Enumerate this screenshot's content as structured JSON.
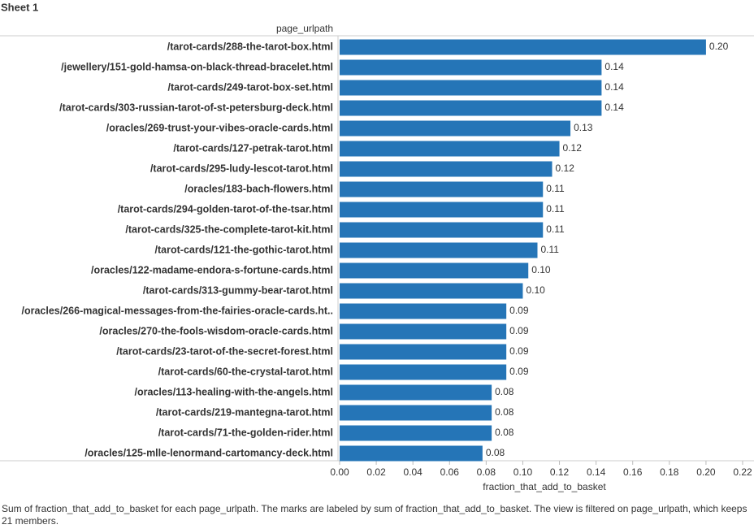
{
  "sheet_title": "Sheet 1",
  "chart_data": {
    "type": "hbar",
    "category_axis_label": "page_urlpath",
    "x_label": "fraction_that_add_to_basket",
    "caption": "Sum of fraction_that_add_to_basket for each page_urlpath.  The marks are labeled by sum of fraction_that_add_to_basket. The view is filtered on page_urlpath, which keeps 21 members.",
    "color": "#2575b7",
    "categories": [
      "/tarot-cards/288-the-tarot-box.html",
      "/jewellery/151-gold-hamsa-on-black-thread-bracelet.html",
      "/tarot-cards/249-tarot-box-set.html",
      "/tarot-cards/303-russian-tarot-of-st-petersburg-deck.html",
      "/oracles/269-trust-your-vibes-oracle-cards.html",
      "/tarot-cards/127-petrak-tarot.html",
      "/tarot-cards/295-ludy-lescot-tarot.html",
      "/oracles/183-bach-flowers.html",
      "/tarot-cards/294-golden-tarot-of-the-tsar.html",
      "/tarot-cards/325-the-complete-tarot-kit.html",
      "/tarot-cards/121-the-gothic-tarot.html",
      "/oracles/122-madame-endora-s-fortune-cards.html",
      "/tarot-cards/313-gummy-bear-tarot.html",
      "/oracles/266-magical-messages-from-the-fairies-oracle-cards.ht..",
      "/oracles/270-the-fools-wisdom-oracle-cards.html",
      "/tarot-cards/23-tarot-of-the-secret-forest.html",
      "/tarot-cards/60-the-crystal-tarot.html",
      "/oracles/113-healing-with-the-angels.html",
      "/tarot-cards/219-mantegna-tarot.html",
      "/tarot-cards/71-the-golden-rider.html",
      "/oracles/125-mlle-lenormand-cartomancy-deck.html"
    ],
    "values": [
      0.2,
      0.143,
      0.143,
      0.143,
      0.126,
      0.12,
      0.116,
      0.111,
      0.111,
      0.111,
      0.108,
      0.103,
      0.1,
      0.091,
      0.091,
      0.091,
      0.091,
      0.083,
      0.083,
      0.083,
      0.078
    ],
    "value_labels": [
      "0.20",
      "0.14",
      "0.14",
      "0.14",
      "0.13",
      "0.12",
      "0.12",
      "0.11",
      "0.11",
      "0.11",
      "0.11",
      "0.10",
      "0.10",
      "0.09",
      "0.09",
      "0.09",
      "0.09",
      "0.08",
      "0.08",
      "0.08",
      "0.08"
    ],
    "xlim": [
      0,
      0.22
    ],
    "xticks": [
      {
        "value": 0,
        "label": "0.00"
      },
      {
        "value": 0.02,
        "label": "0.02"
      },
      {
        "value": 0.04,
        "label": "0.04"
      },
      {
        "value": 0.06,
        "label": "0.06"
      },
      {
        "value": 0.08,
        "label": "0.08"
      },
      {
        "value": 0.1,
        "label": "0.10"
      },
      {
        "value": 0.12,
        "label": "0.12"
      },
      {
        "value": 0.14,
        "label": "0.14"
      },
      {
        "value": 0.16,
        "label": "0.16"
      },
      {
        "value": 0.18,
        "label": "0.18"
      },
      {
        "value": 0.2,
        "label": "0.20"
      },
      {
        "value": 0.22,
        "label": "0.22"
      }
    ]
  }
}
